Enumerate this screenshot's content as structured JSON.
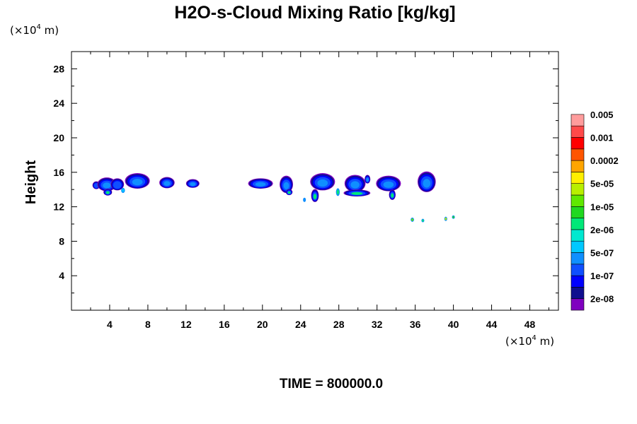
{
  "chart_data": {
    "type": "contour",
    "title": "H2O-s-Cloud Mixing Ratio [kg/kg]",
    "xlabel": "",
    "ylabel": "Height",
    "x_unit_base": "(×10",
    "x_unit_exp": "4",
    "x_unit_suffix": " m)",
    "y_unit_base": "(×10",
    "y_unit_exp": "4",
    "y_unit_suffix": " m)",
    "xlim": [
      0,
      51
    ],
    "ylim": [
      0,
      30
    ],
    "x_ticks": [
      4,
      8,
      12,
      16,
      20,
      24,
      28,
      32,
      36,
      40,
      44,
      48
    ],
    "y_ticks": [
      4,
      8,
      12,
      16,
      20,
      24,
      28
    ],
    "time_label": "TIME = 800000.0",
    "colorbar": {
      "colors": [
        "#7f00bf",
        "#0f0f8f",
        "#0000ff",
        "#0f4fff",
        "#0f8fff",
        "#00c8ff",
        "#00e8d0",
        "#00e878",
        "#20d820",
        "#60e800",
        "#b8ef00",
        "#ffef00",
        "#ffa500",
        "#ff5500",
        "#ff0000",
        "#ff4a4a",
        "#ff9c9c"
      ],
      "labels": [
        "2e-08",
        "1e-07",
        "5e-07",
        "2e-06",
        "1e-05",
        "5e-05",
        "0.0002",
        "0.001",
        "0.005"
      ]
    },
    "cloud_cells": [
      {
        "x": 2.6,
        "y": 14.5,
        "w": 0.8,
        "h": 0.9,
        "core": "#0f4fff"
      },
      {
        "x": 3.7,
        "y": 14.6,
        "w": 2.0,
        "h": 1.6,
        "core": "#0f8fff"
      },
      {
        "x": 3.8,
        "y": 13.7,
        "w": 0.9,
        "h": 0.8,
        "core": "#00e878"
      },
      {
        "x": 4.8,
        "y": 14.6,
        "w": 1.4,
        "h": 1.4,
        "core": "#0f4fff"
      },
      {
        "x": 5.4,
        "y": 13.9,
        "w": 0.4,
        "h": 0.6,
        "core": "#00c8ff"
      },
      {
        "x": 6.9,
        "y": 15.0,
        "w": 2.6,
        "h": 1.8,
        "core": "#0f8fff"
      },
      {
        "x": 10.0,
        "y": 14.8,
        "w": 1.6,
        "h": 1.3,
        "core": "#0f8fff"
      },
      {
        "x": 12.7,
        "y": 14.7,
        "w": 1.4,
        "h": 1.0,
        "core": "#0f8fff"
      },
      {
        "x": 19.8,
        "y": 14.7,
        "w": 2.6,
        "h": 1.2,
        "core": "#0f8fff"
      },
      {
        "x": 22.5,
        "y": 14.6,
        "w": 1.4,
        "h": 2.0,
        "core": "#0f8fff"
      },
      {
        "x": 22.8,
        "y": 13.7,
        "w": 0.7,
        "h": 0.7,
        "core": "#00e878"
      },
      {
        "x": 24.4,
        "y": 12.8,
        "w": 0.3,
        "h": 0.5,
        "core": "#0f8fff"
      },
      {
        "x": 26.3,
        "y": 14.9,
        "w": 2.6,
        "h": 2.0,
        "core": "#0f8fff"
      },
      {
        "x": 25.5,
        "y": 13.3,
        "w": 0.8,
        "h": 1.5,
        "core": "#00e878"
      },
      {
        "x": 27.9,
        "y": 13.7,
        "w": 0.4,
        "h": 0.9,
        "core": "#00e878"
      },
      {
        "x": 29.7,
        "y": 14.7,
        "w": 2.2,
        "h": 2.0,
        "core": "#0f8fff"
      },
      {
        "x": 29.9,
        "y": 13.6,
        "w": 2.8,
        "h": 0.8,
        "core": "#00e878"
      },
      {
        "x": 31.0,
        "y": 15.2,
        "w": 0.6,
        "h": 1.0,
        "core": "#0f8fff"
      },
      {
        "x": 33.2,
        "y": 14.7,
        "w": 2.6,
        "h": 1.8,
        "core": "#0f8fff"
      },
      {
        "x": 33.6,
        "y": 13.4,
        "w": 0.7,
        "h": 1.2,
        "core": "#00e878"
      },
      {
        "x": 37.2,
        "y": 14.9,
        "w": 1.9,
        "h": 2.4,
        "core": "#0f8fff"
      },
      {
        "x": 35.7,
        "y": 10.5,
        "w": 0.35,
        "h": 0.5,
        "core": "#60e800"
      },
      {
        "x": 36.8,
        "y": 10.4,
        "w": 0.3,
        "h": 0.4,
        "core": "#00e878"
      },
      {
        "x": 39.2,
        "y": 10.6,
        "w": 0.3,
        "h": 0.5,
        "core": "#b8ef00"
      },
      {
        "x": 40.0,
        "y": 10.8,
        "w": 0.3,
        "h": 0.4,
        "core": "#20d820"
      }
    ]
  }
}
